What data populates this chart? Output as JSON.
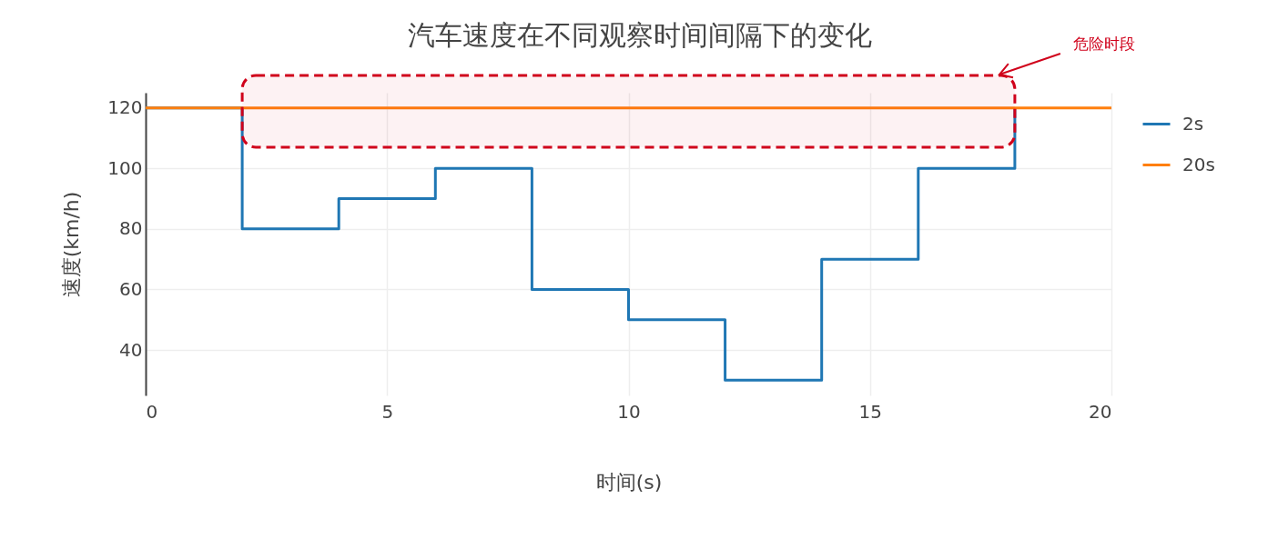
{
  "chart_data": {
    "type": "step",
    "title": "汽车速度在不同观察时间间隔下的变化",
    "xlabel": "时间(s)",
    "ylabel": "速度(km/h)",
    "series": [
      {
        "name": "2s",
        "color": "#1f77b4",
        "x": [
          0,
          2,
          4,
          6,
          8,
          10,
          12,
          14,
          16,
          18
        ],
        "values": [
          120,
          80,
          90,
          100,
          60,
          50,
          30,
          70,
          100,
          120
        ]
      },
      {
        "name": "20s",
        "color": "#ff7f0e",
        "x": [
          0,
          20
        ],
        "values": [
          120,
          120
        ]
      }
    ],
    "xlim": [
      0,
      20
    ],
    "ylim": [
      25,
      125
    ],
    "xticks": [
      0,
      5,
      10,
      15,
      20
    ],
    "yticks": [
      40,
      60,
      80,
      100,
      120
    ],
    "grid": true,
    "legend": "top right",
    "bands": [
      {
        "axis": "x",
        "from": 2,
        "to": 18,
        "label": "危险时段",
        "color": "#d0021b"
      }
    ]
  }
}
